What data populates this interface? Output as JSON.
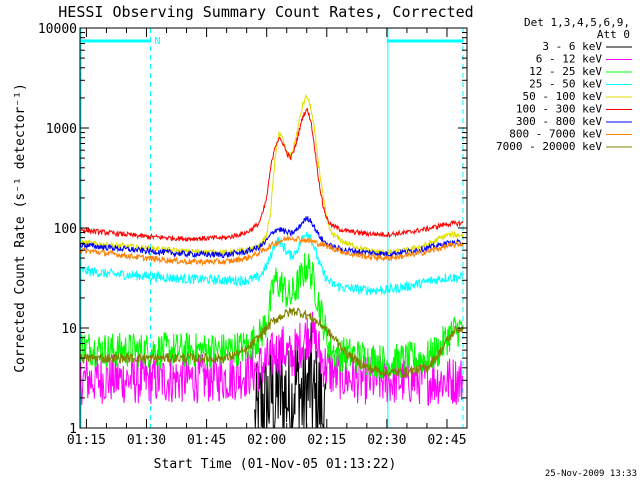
{
  "chart_data": {
    "type": "line",
    "title": "HESSI Observing Summary Count Rates, Corrected",
    "xlabel": "Start Time (01-Nov-05 01:13:22)",
    "ylabel": "Corrected Count Rate (s⁻¹ detector⁻¹)",
    "y_scale": "log",
    "ylim": [
      1,
      10000
    ],
    "xlim_minutes": [
      73.4,
      170
    ],
    "x_ticks": [
      {
        "minute": 75,
        "label": "01:15"
      },
      {
        "minute": 90,
        "label": "01:30"
      },
      {
        "minute": 105,
        "label": "01:45"
      },
      {
        "minute": 120,
        "label": "02:00"
      },
      {
        "minute": 135,
        "label": "02:15"
      },
      {
        "minute": 150,
        "label": "02:30"
      },
      {
        "minute": 165,
        "label": "02:45"
      }
    ],
    "y_ticks": [
      {
        "value": 1,
        "label": "1"
      },
      {
        "value": 10,
        "label": "10"
      },
      {
        "value": 100,
        "label": "100"
      },
      {
        "value": 1000,
        "label": "1000"
      },
      {
        "value": 10000,
        "label": "10000"
      }
    ],
    "legend_header": [
      "Det 1,3,4,5,6,9,",
      "Att 0"
    ],
    "legend_position": "right",
    "annotations": {
      "night_label": "N",
      "night_bars": [
        [
          73.4,
          91
        ],
        [
          150,
          169
        ]
      ],
      "saa_dashed_lines": [
        91,
        169
      ],
      "solid_vertical_lines": [
        73.4,
        150
      ],
      "footer_date": "25-Nov-2009 13:33"
    },
    "series": [
      {
        "name": "3 - 6 keV",
        "color": "#000000",
        "x": [
          117,
          118,
          119,
          120,
          121,
          122,
          123,
          124,
          125,
          126,
          127,
          128,
          129,
          130,
          131,
          132,
          133,
          134,
          135
        ],
        "y": [
          1,
          1.3,
          1.8,
          1.5,
          2.5,
          1.6,
          2.9,
          1.7,
          2.3,
          1.4,
          3.0,
          2.6,
          1.8,
          2.2,
          3.1,
          1.6,
          2.0,
          1.3,
          1
        ]
      },
      {
        "name": "6 - 12 keV",
        "color": "#ff00ff",
        "x": [
          73.4,
          80,
          90,
          100,
          110,
          115,
          118,
          120,
          122,
          124,
          126,
          128,
          130,
          131,
          132,
          133,
          134,
          136,
          140,
          145,
          150,
          155,
          160,
          165,
          169
        ],
        "y": [
          3.0,
          3.1,
          3.0,
          3.1,
          3.2,
          3.5,
          4.0,
          4.6,
          5.5,
          6.2,
          5.0,
          6.5,
          8.5,
          9.2,
          7.5,
          6.0,
          4.5,
          3.6,
          3.2,
          3.0,
          3.0,
          3.0,
          3.0,
          3.0,
          3.0
        ]
      },
      {
        "name": "12 - 25 keV",
        "color": "#00ff00",
        "x": [
          73.4,
          80,
          90,
          100,
          110,
          115,
          118,
          119,
          120,
          121,
          122,
          123,
          124,
          125,
          126,
          127,
          128,
          129,
          130,
          131,
          132,
          133,
          134,
          135,
          136,
          138,
          140,
          145,
          150,
          155,
          160,
          163,
          165,
          167,
          169
        ],
        "y": [
          6.5,
          6.0,
          6.0,
          6.0,
          6.0,
          6.5,
          8.0,
          9.5,
          12,
          18,
          30,
          28,
          26,
          22,
          20,
          24,
          28,
          35,
          42,
          36,
          26,
          18,
          12,
          8,
          6,
          5.5,
          5.5,
          5.0,
          4.5,
          4.8,
          5.0,
          6.0,
          8.0,
          9.5,
          10
        ]
      },
      {
        "name": "25 - 50 keV",
        "color": "#00ffff",
        "x": [
          73.4,
          80,
          90,
          100,
          110,
          115,
          118,
          119,
          120,
          121,
          122,
          123,
          124,
          125,
          126,
          127,
          128,
          129,
          130,
          131,
          132,
          133,
          134,
          135,
          136,
          138,
          140,
          145,
          150,
          155,
          160,
          165,
          169
        ],
        "y": [
          38,
          35,
          33,
          31,
          30,
          30,
          32,
          36,
          42,
          52,
          70,
          75,
          67,
          58,
          53,
          56,
          65,
          80,
          92,
          82,
          62,
          46,
          36,
          31,
          28,
          26,
          25,
          24,
          24,
          26,
          29,
          32,
          32
        ]
      },
      {
        "name": "50 - 100 keV",
        "color": "#e0e000",
        "x": [
          73.4,
          80,
          90,
          100,
          110,
          115,
          118,
          119,
          120,
          121,
          122,
          123,
          124,
          125,
          126,
          127,
          128,
          129,
          130,
          131,
          132,
          133,
          134,
          135,
          136,
          138,
          140,
          145,
          150,
          155,
          160,
          165,
          169
        ],
        "y": [
          72,
          68,
          63,
          58,
          57,
          60,
          65,
          72,
          85,
          150,
          450,
          900,
          780,
          560,
          520,
          700,
          1100,
          1700,
          2100,
          1600,
          900,
          420,
          220,
          120,
          90,
          78,
          70,
          60,
          56,
          60,
          68,
          85,
          85
        ]
      },
      {
        "name": "100 - 300 keV",
        "color": "#ff0000",
        "x": [
          73.4,
          80,
          90,
          100,
          110,
          115,
          118,
          119,
          120,
          121,
          122,
          123,
          124,
          125,
          126,
          127,
          128,
          129,
          130,
          131,
          132,
          133,
          134,
          135,
          136,
          138,
          140,
          145,
          150,
          155,
          160,
          165,
          169
        ],
        "y": [
          96,
          90,
          82,
          78,
          80,
          90,
          110,
          140,
          200,
          400,
          650,
          780,
          720,
          560,
          500,
          620,
          900,
          1300,
          1550,
          1200,
          620,
          300,
          170,
          125,
          108,
          98,
          93,
          88,
          86,
          90,
          98,
          110,
          112
        ]
      },
      {
        "name": "300 - 800 keV",
        "color": "#0000ff",
        "x": [
          73.4,
          80,
          90,
          100,
          110,
          115,
          118,
          119,
          120,
          121,
          122,
          123,
          124,
          125,
          126,
          127,
          128,
          129,
          130,
          131,
          132,
          133,
          134,
          135,
          136,
          138,
          140,
          145,
          150,
          155,
          160,
          165,
          169
        ],
        "y": [
          68,
          64,
          59,
          55,
          54,
          58,
          64,
          68,
          75,
          85,
          95,
          98,
          95,
          90,
          88,
          92,
          100,
          115,
          125,
          120,
          100,
          85,
          75,
          70,
          66,
          62,
          60,
          57,
          55,
          58,
          63,
          70,
          72
        ]
      },
      {
        "name": "800 - 7000 keV",
        "color": "#ff8000",
        "x": [
          73.4,
          80,
          90,
          100,
          110,
          115,
          118,
          120,
          122,
          124,
          125,
          126,
          127,
          128,
          130,
          132,
          134,
          136,
          138,
          140,
          145,
          150,
          155,
          160,
          165,
          169
        ],
        "y": [
          60,
          56,
          50,
          46,
          46,
          50,
          56,
          63,
          70,
          76,
          78,
          80,
          79,
          78,
          75,
          72,
          68,
          64,
          60,
          56,
          52,
          50,
          53,
          58,
          66,
          70
        ]
      },
      {
        "name": "7000 - 20000 keV",
        "color": "#808000",
        "x": [
          73.4,
          80,
          90,
          100,
          110,
          115,
          118,
          120,
          122,
          124,
          126,
          127,
          128,
          130,
          132,
          134,
          136,
          138,
          140,
          145,
          150,
          155,
          160,
          163,
          165,
          167,
          169
        ],
        "y": [
          5.0,
          5.0,
          5.0,
          5.0,
          5.0,
          6.0,
          8.0,
          10,
          12,
          13.5,
          14.5,
          14.8,
          14.5,
          13.5,
          12,
          10.5,
          8.5,
          7.0,
          5.5,
          4.0,
          3.6,
          3.6,
          4.0,
          5.5,
          7.5,
          9.5,
          10
        ]
      }
    ]
  }
}
